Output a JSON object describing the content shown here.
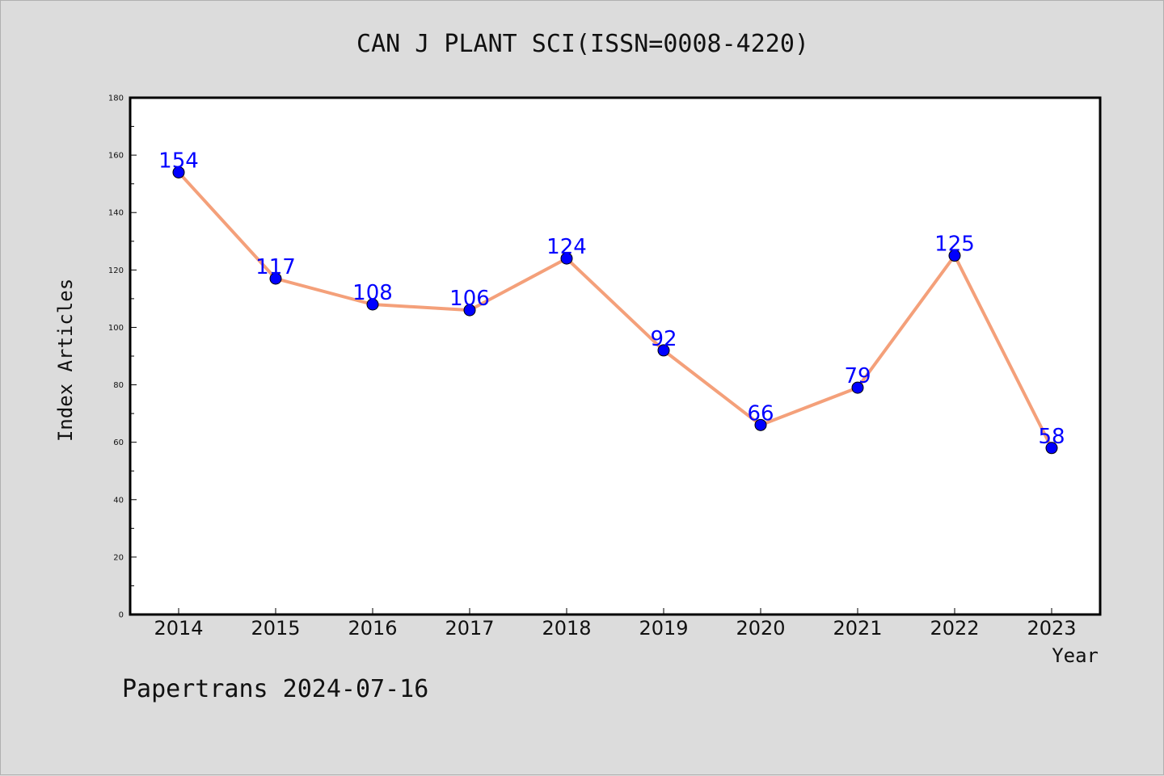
{
  "chart_data": {
    "type": "line",
    "title": "CAN J PLANT SCI(ISSN=0008-4220)",
    "xlabel": "Year",
    "ylabel": "Index Articles",
    "categories": [
      "2014",
      "2015",
      "2016",
      "2017",
      "2018",
      "2019",
      "2020",
      "2021",
      "2022",
      "2023"
    ],
    "series": [
      {
        "values": [
          154,
          117,
          108,
          106,
          124,
          92,
          66,
          79,
          125,
          58
        ]
      }
    ],
    "ylim": [
      0,
      180
    ],
    "yticks": [
      "0",
      "20",
      "40",
      "60",
      "80",
      "100",
      "120",
      "140",
      "160",
      "180"
    ],
    "grid": false,
    "line_color": "#f4a07a",
    "marker_color": "#0000ff",
    "label_color": "#0000ff"
  },
  "footer": "Papertrans 2024-07-16"
}
